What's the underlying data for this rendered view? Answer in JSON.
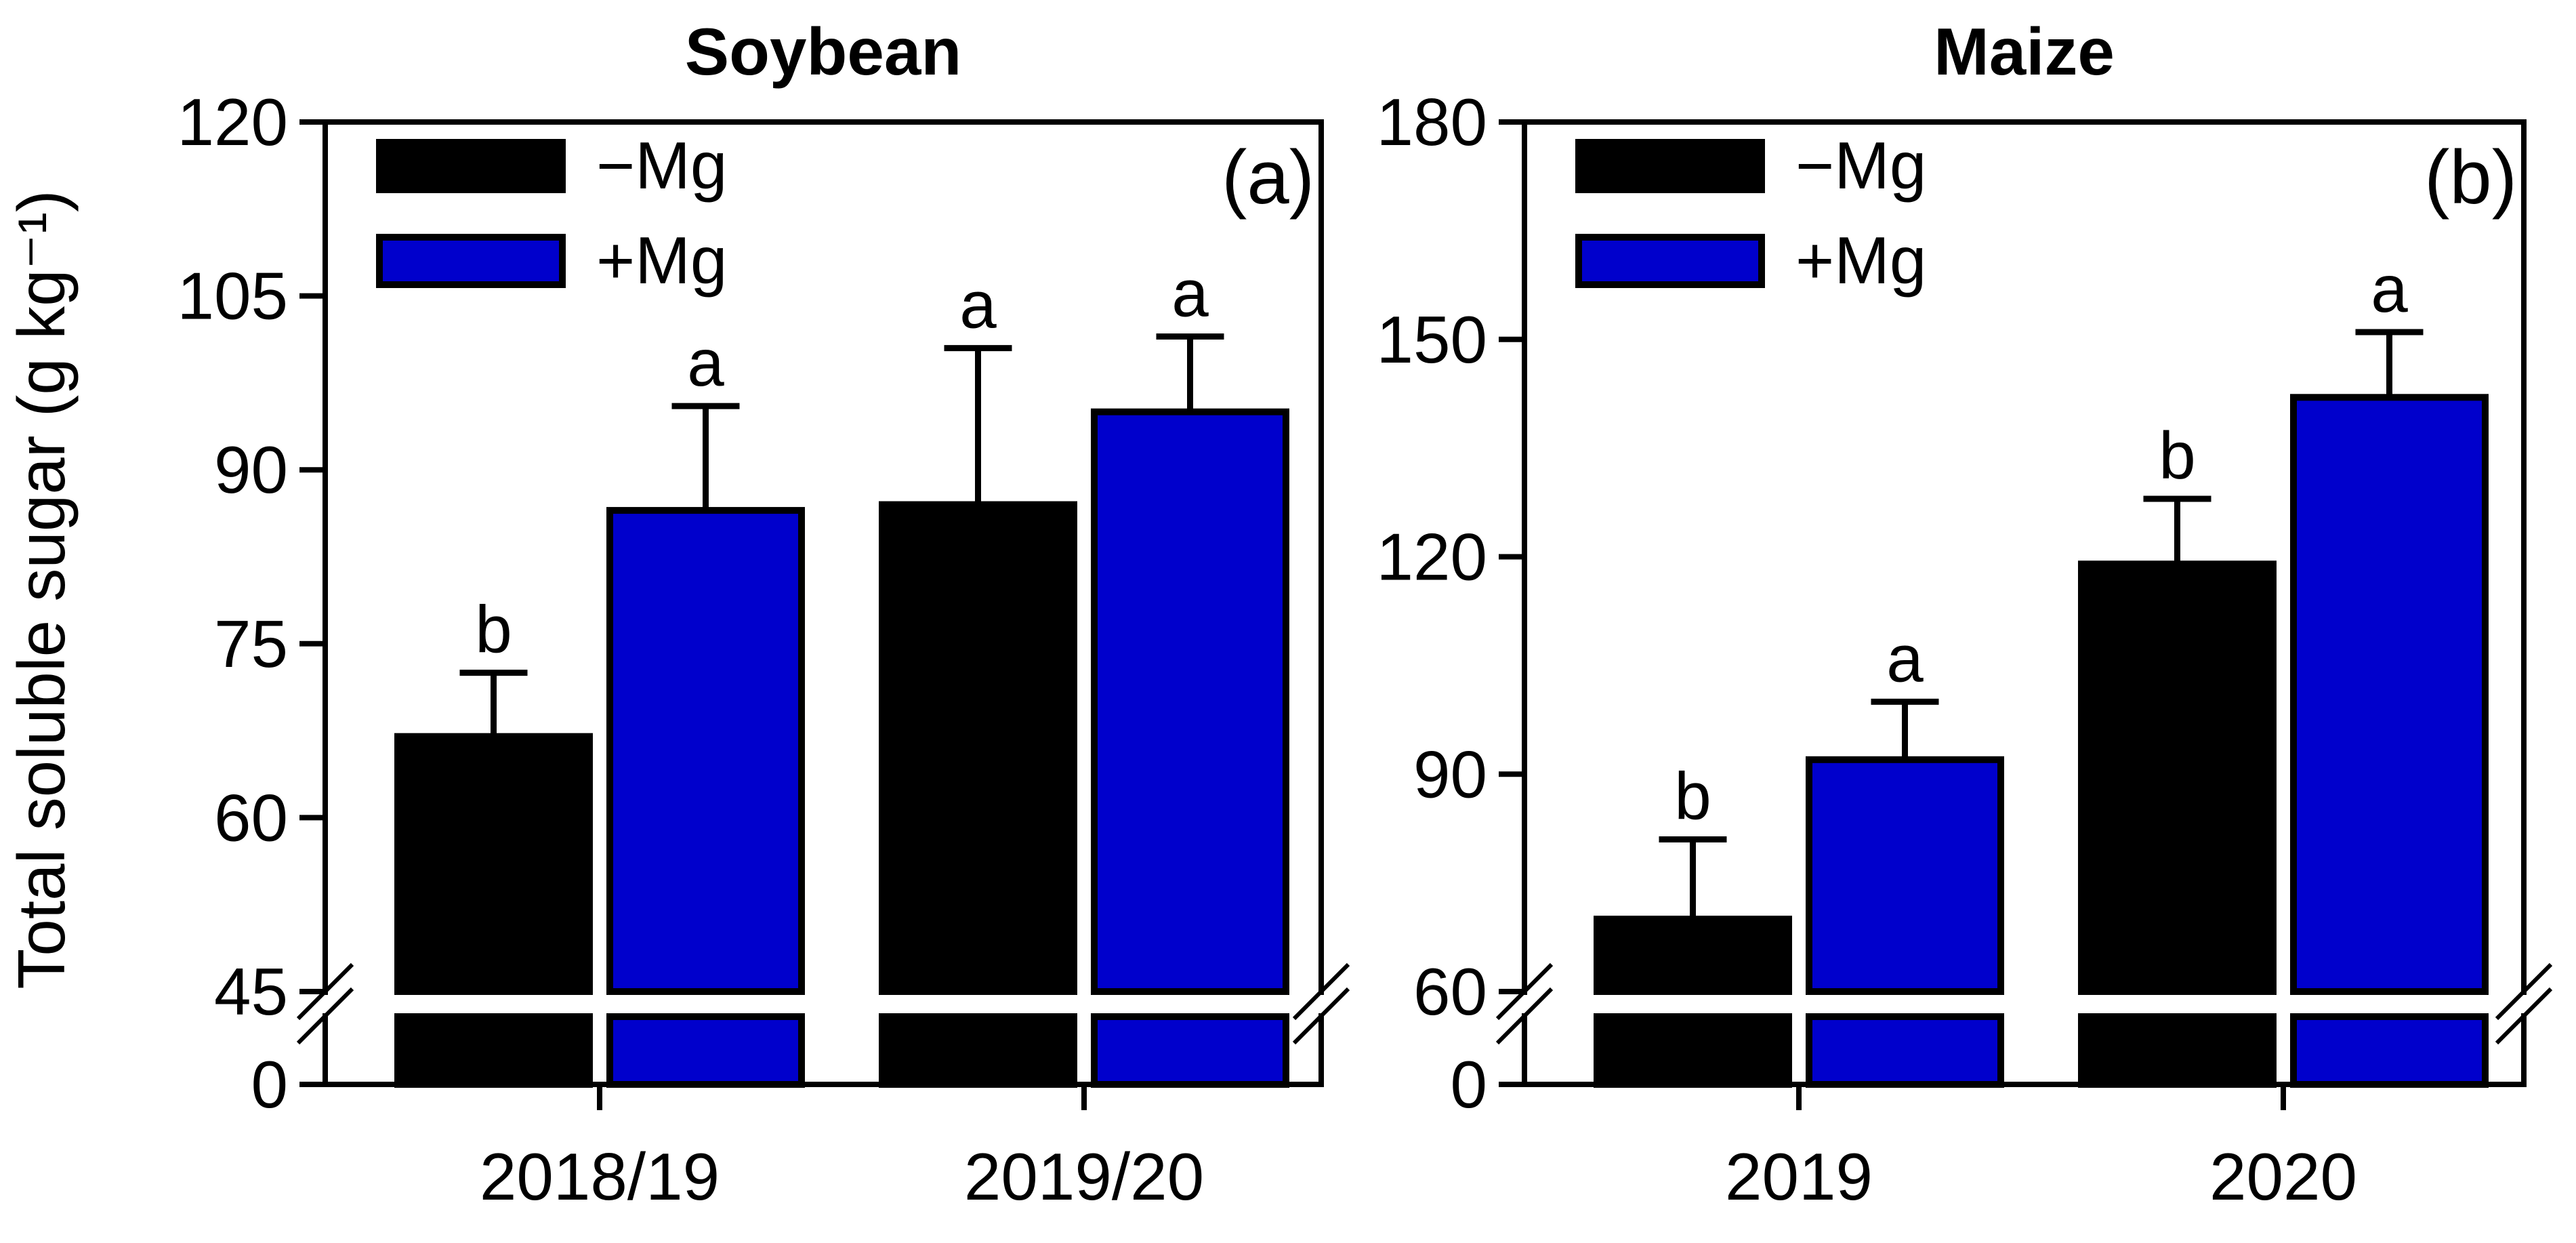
{
  "chart_data": {
    "ylabel": "Total soluble sugar (g kg⁻¹)",
    "colors": {
      "minus_mg": "#000000",
      "plus_mg": "#0000cc",
      "edge": "#000000",
      "break_gap": "#ffffff"
    },
    "legend": {
      "placement": "top-left",
      "entries": [
        "−Mg",
        "+Mg"
      ]
    },
    "panels": [
      {
        "type": "bar",
        "title": "Soybean",
        "panel_label": "(a)",
        "categories": [
          "2018/19",
          "2019/20"
        ],
        "series": [
          {
            "name": "−Mg",
            "values": [
              67,
              87
            ],
            "errors": [
              5.5,
              13.5
            ],
            "letters": [
              "b",
              "a"
            ]
          },
          {
            "name": "+Mg",
            "values": [
              86.5,
              95
            ],
            "errors": [
              9,
              6.5
            ],
            "letters": [
              "a",
              "a"
            ]
          }
        ],
        "y_break": [
          0,
          45
        ],
        "ylim": [
          45,
          120
        ],
        "yticks": [
          0,
          45,
          60,
          75,
          90,
          105,
          120
        ]
      },
      {
        "type": "bar",
        "title": "Maize",
        "panel_label": "(b)",
        "categories": [
          "2019",
          "2020"
        ],
        "series": [
          {
            "name": "−Mg",
            "values": [
              70,
              119
            ],
            "errors": [
              11,
              9
            ],
            "letters": [
              "b",
              "b"
            ]
          },
          {
            "name": "+Mg",
            "values": [
              92,
              142
            ],
            "errors": [
              8,
              9
            ],
            "letters": [
              "a",
              "a"
            ]
          }
        ],
        "y_break": [
          0,
          60
        ],
        "ylim": [
          60,
          180
        ],
        "yticks": [
          0,
          60,
          90,
          120,
          150,
          180
        ]
      }
    ]
  }
}
